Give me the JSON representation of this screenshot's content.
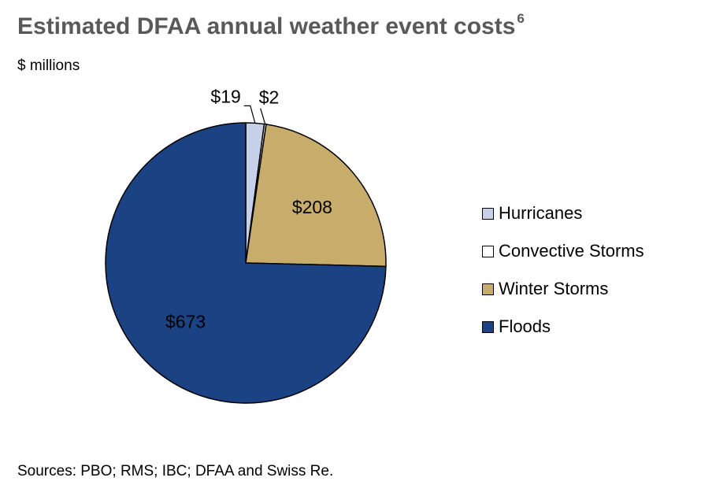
{
  "title": "Estimated DFAA annual weather event costs",
  "title_note": "6",
  "unit": "$ millions",
  "source": "Sources:  PBO; RMS; IBC; DFAA and Swiss Re.",
  "chart_data": {
    "type": "pie",
    "title": "Estimated DFAA annual weather event costs",
    "unit": "$ millions",
    "legend_position": "right",
    "slices": [
      {
        "name": "Hurricanes",
        "value": 19,
        "label": "$19",
        "color": "#c6d0e8"
      },
      {
        "name": "Convective Storms",
        "value": 2,
        "label": "$2",
        "color": "#ffffff"
      },
      {
        "name": "Winter Storms",
        "value": 208,
        "label": "$208",
        "color": "#c7ac6b"
      },
      {
        "name": "Floods",
        "value": 673,
        "label": "$673",
        "color": "#1b4384"
      }
    ]
  }
}
